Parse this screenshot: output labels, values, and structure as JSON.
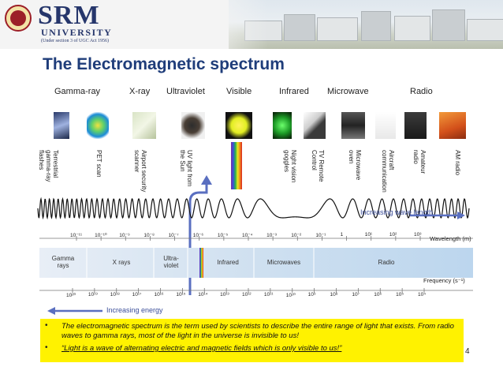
{
  "header": {
    "logo_name": "SRM",
    "logo_subtitle": "UNIVERSITY",
    "logo_note": "(Under section 3 of UGC Act 1956)"
  },
  "slide": {
    "title": "The Electromagnetic spectrum",
    "page_number": "4"
  },
  "spectrum": {
    "categories": [
      "Gamma-ray",
      "X-ray",
      "Ultraviolet",
      "Visible",
      "Infrared",
      "Microwave",
      "Radio"
    ],
    "examples": [
      "Terrestrial gamma-ray flashes",
      "PET scan",
      "Airport security scanner",
      "UV light from the Sun",
      "Night vision goggles",
      "TV Remote Control",
      "Microwave oven",
      "Aircraft communication",
      "Amateur radio",
      "AM radio"
    ],
    "wavelength_label": "Increasing wave length",
    "wavelength_axis_label": "Wavelength (m)",
    "wavelength_ticks": [
      "10⁻¹¹",
      "10⁻¹⁰",
      "10⁻⁹",
      "10⁻⁸",
      "10⁻⁷",
      "10⁻⁶",
      "10⁻⁵",
      "10⁻⁴",
      "10⁻³",
      "10⁻²",
      "10⁻¹",
      "1",
      "10¹",
      "10²",
      "10³"
    ],
    "bands": [
      "Gamma rays",
      "X rays",
      "Ultra- violet",
      "Infrared",
      "Microwaves",
      "Radio"
    ],
    "frequency_axis_label": "Frequency (s⁻¹)",
    "frequency_ticks": [
      "10²⁰",
      "10¹⁹",
      "10¹⁸",
      "10¹⁷",
      "10¹⁶",
      "10¹⁵",
      "10¹⁴",
      "10¹³",
      "10¹²",
      "10¹¹",
      "10¹⁰",
      "10⁹",
      "10⁸",
      "10⁷",
      "10⁶",
      "10⁵",
      "10⁴"
    ],
    "energy_label": "Increasing energy"
  },
  "bullets": [
    "The electromagnetic spectrum is the term used by scientists to describe the entire range of light that exists. From radio waves to gamma rays, most of the light in the universe is invisible to us!",
    "“Light is a wave of alternating electric and magnetic fields which is only visible to us!”"
  ],
  "colors": {
    "title": "#1f3d7a",
    "highlight": "#fff200",
    "arrow": "#5a6fc0",
    "band": "#dbe8f4"
  }
}
